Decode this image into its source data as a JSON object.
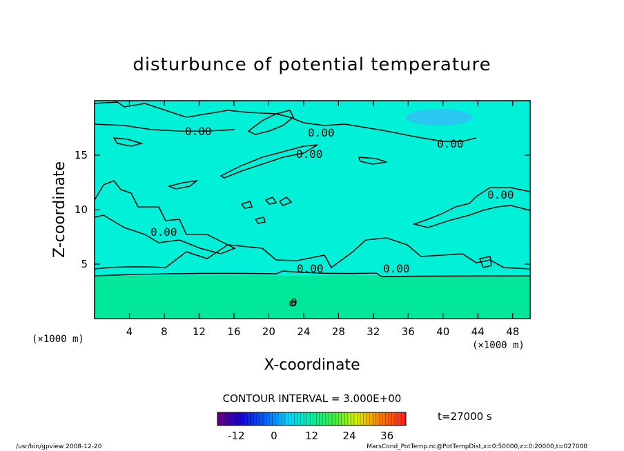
{
  "chart_data": {
    "type": "heatmap",
    "title": "disturbunce of potential temperature",
    "xlabel": "X-coordinate",
    "ylabel": "Z-coordinate",
    "x_unit_left": "(×1000 m)",
    "x_unit_right": "(×1000 m)",
    "xlim": [
      0,
      50
    ],
    "ylim": [
      0,
      20
    ],
    "x_ticks": [
      4,
      8,
      12,
      16,
      20,
      24,
      28,
      32,
      36,
      40,
      44,
      48
    ],
    "y_ticks": [
      5,
      10,
      15
    ],
    "contour_labels": [
      "0.00",
      "0.00",
      "0.00",
      "0.00",
      "0.00",
      "0.00",
      "0.00",
      "0.00",
      "0.00",
      "0"
    ],
    "contour_interval_text": "CONTOUR INTERVAL = 3.000E+00",
    "colorbar_ticks": [
      -12,
      0,
      12,
      24,
      36
    ],
    "colorbar_range": [
      -18,
      42
    ],
    "time_label": "t=27000 s",
    "footer_left": "/usr/bin/gpview   2008-12-20",
    "footer_right": "MarsCond_PotTemp.nc@PotTempDist,x=0:50000,z=0:20000,t=027000",
    "background_color": "#00f0d8",
    "lower_layer_color": "#00e69a",
    "cold_patch_color": "#28c8f0"
  }
}
